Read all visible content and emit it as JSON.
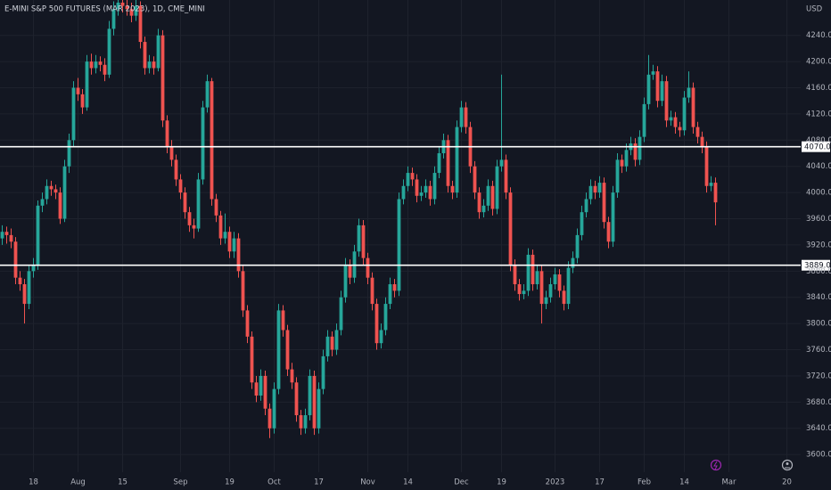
{
  "chart_data": {
    "type": "candlestick",
    "title": "E-MINI S&P 500 FUTURES (MAR 2023), 1D, CME_MINI",
    "currency": "USD",
    "up_color": "#26a69a",
    "down_color": "#ef5350",
    "grid": true,
    "categories": [
      null,
      null,
      null,
      null,
      null,
      null,
      null,
      "18",
      null,
      null,
      null,
      null,
      null,
      null,
      null,
      null,
      null,
      "Aug",
      null,
      null,
      null,
      null,
      null,
      null,
      null,
      null,
      null,
      "15",
      null,
      null,
      null,
      null,
      null,
      null,
      null,
      null,
      null,
      null,
      null,
      null,
      "Sep",
      null,
      null,
      null,
      null,
      null,
      null,
      null,
      null,
      null,
      null,
      "19",
      null,
      null,
      null,
      null,
      null,
      null,
      null,
      null,
      null,
      "Oct",
      null,
      null,
      null,
      null,
      null,
      null,
      null,
      null,
      null,
      "17",
      null,
      null,
      null,
      null,
      null,
      null,
      null,
      null,
      null,
      null,
      "Nov",
      null,
      null,
      null,
      null,
      null,
      null,
      null,
      null,
      "14",
      null,
      null,
      null,
      null,
      null,
      null,
      null,
      null,
      null,
      null,
      null,
      "Dec",
      null,
      null,
      null,
      null,
      null,
      null,
      null,
      null,
      "19",
      null,
      null,
      null,
      null,
      null,
      null,
      null,
      null,
      null,
      null,
      null,
      "2023",
      null,
      null,
      null,
      null,
      null,
      null,
      null,
      null,
      null,
      "17",
      null,
      null,
      null,
      null,
      null,
      null,
      null,
      null,
      null,
      "Feb",
      null,
      null,
      null,
      null,
      null,
      null,
      null,
      null,
      "14",
      null,
      null,
      null,
      null,
      null,
      null,
      null,
      null,
      null,
      "Mar",
      null,
      null,
      null,
      null,
      null,
      null,
      null,
      null,
      null,
      null,
      null,
      null,
      "20"
    ],
    "open": [
      3930,
      3940,
      3935,
      3925,
      3870,
      3860,
      3830,
      3880,
      3890,
      3980,
      3990,
      4010,
      4005,
      4000,
      3960,
      4040,
      4080,
      4160,
      4150,
      4130,
      4200,
      4190,
      4200,
      4195,
      4180,
      4250,
      4280,
      4290,
      4285,
      4280,
      4270,
      4285,
      4230,
      4190,
      4200,
      4190,
      4240,
      4110,
      4070,
      4050,
      4020,
      4000,
      3970,
      3950,
      3945,
      4020,
      4130,
      4170,
      3990,
      3965,
      3930,
      3940,
      3910,
      3930,
      3880,
      3820,
      3780,
      3710,
      3690,
      3720,
      3670,
      3640,
      3700,
      3820,
      3790,
      3730,
      3710,
      3660,
      3640,
      3660,
      3720,
      3640,
      3700,
      3750,
      3780,
      3760,
      3790,
      3840,
      3890,
      3870,
      3910,
      3950,
      3900,
      3870,
      3830,
      3770,
      3790,
      3830,
      3860,
      3850,
      3990,
      4010,
      4030,
      4020,
      3995,
      4000,
      4010,
      3990,
      4030,
      4060,
      4080,
      4010,
      4000,
      4100,
      4130,
      4100,
      4040,
      4000,
      3970,
      3980,
      4010,
      3975,
      4040,
      4050,
      4000,
      3890,
      3860,
      3845,
      3850,
      3905,
      3860,
      3880,
      3830,
      3840,
      3860,
      3875,
      3850,
      3830,
      3885,
      3900,
      3935,
      3970,
      3990,
      4010,
      4000,
      4015,
      3955,
      3925,
      4000,
      4050,
      4040,
      4065,
      4075,
      4050,
      4085,
      4135,
      4180,
      4185,
      4140,
      4170,
      4110,
      4115,
      4100,
      4095,
      4145,
      4160,
      4100,
      4085,
      4070,
      4010,
      4015,
      null,
      null,
      null,
      null,
      null,
      null,
      null,
      null,
      null,
      null,
      null,
      null,
      null,
      null,
      null,
      null
    ],
    "high": [
      3950,
      3948,
      3945,
      3932,
      3880,
      3868,
      3890,
      3900,
      3988,
      4000,
      4020,
      4018,
      4012,
      4008,
      4050,
      4090,
      4170,
      4175,
      4158,
      4210,
      4212,
      4210,
      4208,
      4205,
      4262,
      4292,
      4300,
      4300,
      4295,
      4290,
      4295,
      4292,
      4238,
      4210,
      4208,
      4250,
      4248,
      4118,
      4080,
      4058,
      4028,
      4008,
      3978,
      3960,
      4030,
      4140,
      4180,
      4175,
      3998,
      3972,
      3968,
      3948,
      3940,
      3938,
      3888,
      3828,
      3788,
      3720,
      3730,
      3728,
      3678,
      3710,
      3830,
      3828,
      3798,
      3740,
      3718,
      3668,
      3670,
      3730,
      3728,
      3710,
      3760,
      3790,
      3788,
      3800,
      3850,
      3900,
      3898,
      3920,
      3960,
      3958,
      3908,
      3878,
      3838,
      3800,
      3840,
      3870,
      3868,
      4000,
      4020,
      4040,
      4038,
      4028,
      4010,
      4020,
      4018,
      4040,
      4070,
      4090,
      4088,
      4018,
      4110,
      4140,
      4138,
      4108,
      4048,
      4008,
      3990,
      4020,
      4018,
      4050,
      4180,
      4058,
      4008,
      3898,
      3868,
      3860,
      3915,
      3913,
      3890,
      3888,
      3850,
      3870,
      3885,
      3883,
      3858,
      3895,
      3910,
      3945,
      3980,
      4000,
      4020,
      4018,
      4025,
      4023,
      3963,
      4010,
      4060,
      4058,
      4075,
      4085,
      4083,
      4095,
      4145,
      4210,
      4195,
      4193,
      4180,
      4178,
      4125,
      4123,
      4108,
      4155,
      4185,
      4168,
      4108,
      4093,
      4078,
      4025,
      4023,
      null,
      null,
      null,
      null,
      null,
      null,
      null,
      null,
      null,
      null,
      null,
      null,
      null,
      null,
      null,
      null
    ],
    "low": [
      3920,
      3922,
      3915,
      3860,
      3850,
      3800,
      3822,
      3870,
      3882,
      3970,
      3982,
      3995,
      3990,
      3952,
      3955,
      4030,
      4070,
      4140,
      4120,
      4125,
      4180,
      4182,
      4185,
      4170,
      4175,
      4240,
      4270,
      4275,
      4270,
      4260,
      4262,
      4220,
      4180,
      4182,
      4180,
      4185,
      4100,
      4060,
      4040,
      4010,
      3990,
      3960,
      3940,
      3930,
      3940,
      4012,
      4122,
      3980,
      3955,
      3920,
      3922,
      3900,
      3900,
      3870,
      3810,
      3770,
      3700,
      3680,
      3682,
      3660,
      3625,
      3632,
      3692,
      3780,
      3720,
      3700,
      3650,
      3630,
      3632,
      3652,
      3630,
      3632,
      3692,
      3742,
      3750,
      3752,
      3782,
      3832,
      3860,
      3862,
      3902,
      3890,
      3860,
      3820,
      3760,
      3762,
      3782,
      3822,
      3840,
      3842,
      3982,
      4002,
      4010,
      3985,
      3987,
      3992,
      3980,
      3982,
      4022,
      4052,
      4000,
      3990,
      3992,
      4092,
      4090,
      4030,
      3990,
      3960,
      3962,
      3972,
      3965,
      3967,
      4032,
      3990,
      3880,
      3850,
      3835,
      3837,
      3842,
      3850,
      3852,
      3800,
      3822,
      3832,
      3852,
      3840,
      3820,
      3822,
      3877,
      3892,
      3927,
      3962,
      3982,
      3990,
      3992,
      3945,
      3915,
      3917,
      3992,
      4030,
      4032,
      4057,
      4040,
      4042,
      4077,
      4127,
      4172,
      4130,
      4132,
      4100,
      4102,
      4090,
      4085,
      4087,
      4137,
      4090,
      4075,
      4060,
      4000,
      4002,
      3950,
      null,
      null,
      null,
      null,
      null,
      null,
      null,
      null,
      null,
      null,
      null,
      null,
      null,
      null,
      null,
      null
    ],
    "close": [
      3940,
      3935,
      3925,
      3870,
      3860,
      3830,
      3880,
      3890,
      3980,
      3990,
      4010,
      4005,
      4000,
      3960,
      4040,
      4080,
      4160,
      4150,
      4130,
      4200,
      4190,
      4200,
      4195,
      4180,
      4250,
      4280,
      4290,
      4285,
      4280,
      4270,
      4285,
      4230,
      4190,
      4200,
      4190,
      4240,
      4110,
      4070,
      4050,
      4020,
      4000,
      3970,
      3950,
      3945,
      4020,
      4130,
      4170,
      3990,
      3965,
      3930,
      3940,
      3910,
      3930,
      3880,
      3820,
      3780,
      3710,
      3690,
      3720,
      3670,
      3640,
      3700,
      3820,
      3790,
      3730,
      3710,
      3660,
      3640,
      3660,
      3720,
      3640,
      3700,
      3750,
      3780,
      3760,
      3790,
      3840,
      3890,
      3870,
      3910,
      3950,
      3900,
      3870,
      3830,
      3770,
      3790,
      3830,
      3860,
      3850,
      3990,
      4010,
      4030,
      4020,
      3995,
      4000,
      4010,
      3990,
      4030,
      4060,
      4080,
      4010,
      4000,
      4100,
      4130,
      4100,
      4040,
      4000,
      3970,
      3980,
      4010,
      3975,
      4040,
      4050,
      4000,
      3890,
      3860,
      3845,
      3850,
      3905,
      3860,
      3880,
      3830,
      3840,
      3860,
      3875,
      3850,
      3830,
      3885,
      3900,
      3935,
      3970,
      3990,
      4010,
      4000,
      4015,
      3955,
      3925,
      4000,
      4050,
      4040,
      4065,
      4075,
      4050,
      4085,
      4135,
      4180,
      4185,
      4140,
      4170,
      4110,
      4115,
      4100,
      4095,
      4145,
      4160,
      4100,
      4085,
      4070,
      4010,
      4015,
      3985,
      null,
      null,
      null,
      null,
      null,
      null,
      null,
      null,
      null,
      null,
      null,
      null,
      null,
      null,
      null,
      null
    ],
    "ylim": [
      3573,
      4294
    ],
    "yticks": [
      {
        "value": 3600,
        "label": "3600.00"
      },
      {
        "value": 3640,
        "label": "3640.00"
      },
      {
        "value": 3680,
        "label": "3680.00"
      },
      {
        "value": 3720,
        "label": "3720.00"
      },
      {
        "value": 3760,
        "label": "3760.00"
      },
      {
        "value": 3800,
        "label": "3800.00"
      },
      {
        "value": 3840,
        "label": "3840.00"
      },
      {
        "value": 3880,
        "label": "3880.00"
      },
      {
        "value": 3920,
        "label": "3920.00"
      },
      {
        "value": 3960,
        "label": "3960.00"
      },
      {
        "value": 4000,
        "label": "4000.00"
      },
      {
        "value": 4040,
        "label": "4040.00"
      },
      {
        "value": 4080,
        "label": "4080.00"
      },
      {
        "value": 4120,
        "label": "4120.00"
      },
      {
        "value": 4160,
        "label": "4160.00"
      },
      {
        "value": 4200,
        "label": "4200.00"
      },
      {
        "value": 4240,
        "label": "4240.00"
      }
    ],
    "levels": [
      {
        "value": 4070,
        "label": "4070.00"
      },
      {
        "value": 3889,
        "label": "3889.00"
      }
    ]
  }
}
